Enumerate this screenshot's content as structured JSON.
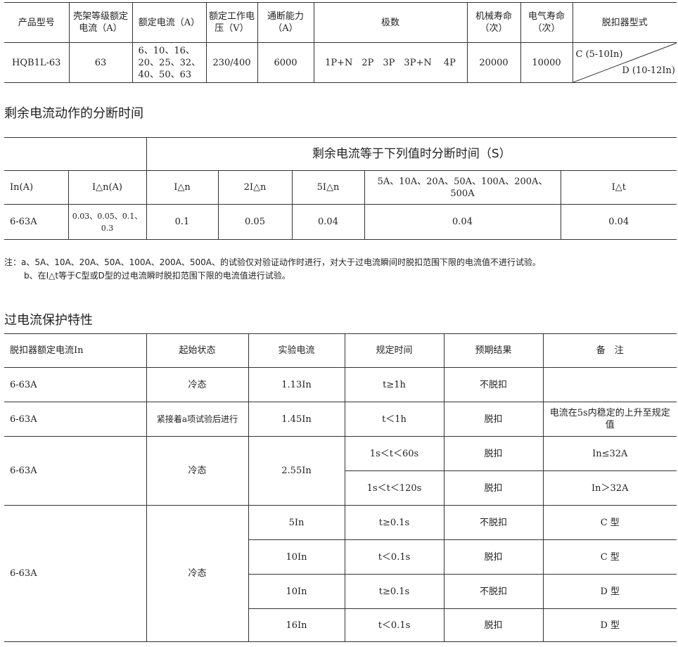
{
  "spec_table": {
    "headers": [
      "产品型号",
      "壳架等级额定电流（A）",
      "额定电流（A）",
      "额定工作电压（V）",
      "通断能力（A）",
      "极数",
      "机械寿命（次）",
      "电气寿命（次）",
      "脱扣器型式"
    ],
    "row": [
      "HQB1L-63",
      "63",
      "6、10、16、20、25、32、40、50、63",
      "230/400",
      "6000",
      "1P+N　2P　3P　3P+N　 4P",
      "20000",
      "10000"
    ],
    "trip_c": "C (5-10In)",
    "trip_d": "D (10-12In)"
  },
  "section1_title": "剩余电流动作的分断时间",
  "rcd_table": {
    "group_header": "剩余电流等于下列值时分断时间（S）",
    "headers": [
      "In(A)",
      "I△n(A)",
      "I△n",
      "2I△n",
      "5I△n",
      "5A、10A、20A、50A、100A、200A、500A",
      "I△t"
    ],
    "row": [
      "6-63A",
      "0.03、0.05、0.1、0.3",
      "0.1",
      "0.05",
      "0.04",
      "0.04",
      "0.04"
    ]
  },
  "notes": [
    "注：a、5A、10A、20A、50A、100A、200A、500A、的试验仅对验证动作时进行，对大于过电流瞬间时脱扣范围下限的电流值不进行试验。",
    "b、在I△t等于C型或D型的过电流瞬时脱扣范围下限的电流值进行试验。"
  ],
  "section2_title": "过电流保护特性",
  "oc_table": {
    "headers": [
      "脱扣器额定电流In",
      "起始状态",
      "实验电流",
      "规定时间",
      "预期结果",
      "备　注"
    ],
    "rows": [
      [
        "6-63A",
        "冷态",
        "1.13In",
        "t≥1h",
        "不脱扣",
        ""
      ],
      [
        "6-63A",
        "紧接着a项试验后进行",
        "1.45In",
        "t＜1h",
        "脱扣",
        "电流在5s内稳定的上升至规定值"
      ],
      [
        "6-63A",
        "冷态",
        "2.55In",
        "1s＜t＜60s",
        "脱扣",
        "In≤32A"
      ],
      [
        "",
        "",
        "",
        "1s＜t＜120s",
        "脱扣",
        "In＞32A"
      ],
      [
        "6-63A",
        "冷态",
        "5In",
        "t≥0.1s",
        "不脱扣",
        "C 型"
      ],
      [
        "",
        "",
        "10In",
        "t＜0.1s",
        "脱扣",
        "C 型"
      ],
      [
        "",
        "",
        "10In",
        "t≥0.1s",
        "不脱扣",
        "D 型"
      ],
      [
        "",
        "",
        "16In",
        "t＜0.1s",
        "脱扣",
        "D 型"
      ]
    ]
  }
}
